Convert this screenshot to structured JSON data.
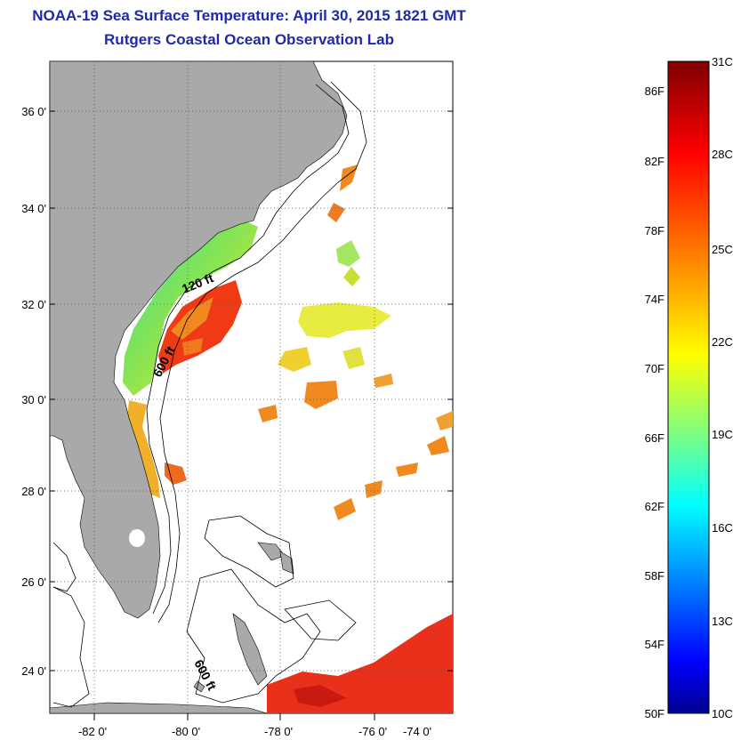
{
  "header": {
    "title": "NOAA-19 Sea Surface Temperature:  April 30, 2015 1821 GMT",
    "subtitle": "Rutgers Coastal Ocean Observation Lab"
  },
  "map": {
    "lat_labels": [
      "36 0'",
      "34 0'",
      "32 0'",
      "30 0'",
      "28 0'",
      "26 0'",
      "24 0'"
    ],
    "lon_labels": [
      "-82 0'",
      "-80 0'",
      "-78 0'",
      "-76 0'",
      "-74 0'"
    ],
    "contour_labels": {
      "shelf": "120 ft",
      "slope": "600 ft",
      "south": "600 ft"
    },
    "land_color": "#a9a9a9"
  },
  "colorbar": {
    "fahrenheit": [
      "86F",
      "82F",
      "78F",
      "74F",
      "70F",
      "66F",
      "62F",
      "58F",
      "54F",
      "50F"
    ],
    "celsius": [
      "31C",
      "28C",
      "25C",
      "22C",
      "19C",
      "16C",
      "13C",
      "10C"
    ],
    "colors": [
      "#7f0000",
      "#ff0000",
      "#ff8000",
      "#ffff00",
      "#80ff80",
      "#00ffff",
      "#0080ff",
      "#0000ff",
      "#00008f"
    ]
  }
}
